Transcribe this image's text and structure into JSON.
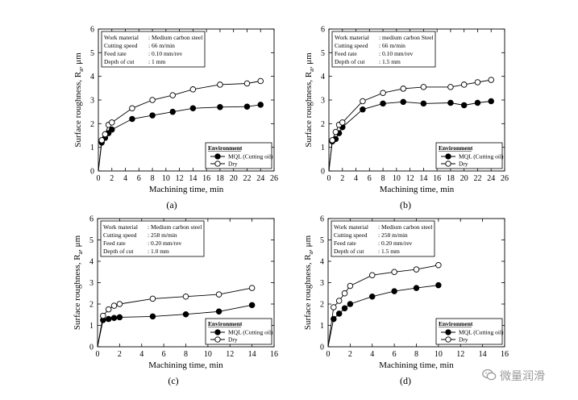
{
  "chart_data": [
    {
      "type": "line",
      "label": "(a)",
      "xlabel": "Machining time, min",
      "ylabel_main": "Surface roughness, R",
      "ylabel_sub": "a",
      "ylabel_unit": ", μm",
      "xlim": [
        0,
        26
      ],
      "ylim": [
        0,
        6
      ],
      "xticks": [
        "0",
        "2",
        "4",
        "6",
        "8",
        "10",
        "12",
        "14",
        "16",
        "18",
        "20",
        "22",
        "24",
        "26"
      ],
      "yticks": [
        "0",
        "1",
        "2",
        "3",
        "4",
        "5",
        "6"
      ],
      "conditions": [
        [
          "Work material",
          ": Medium carbon steel"
        ],
        [
          "Cutting speed",
          ": 66 m/min"
        ],
        [
          "Feed rate",
          ": 0.10 mm/rev"
        ],
        [
          "Depth of cut",
          ": 1 mm"
        ]
      ],
      "legend_title": "Environment",
      "series": [
        {
          "name": "MQL (Cutting oil)",
          "marker": "filled",
          "x": [
            0,
            0.5,
            1,
            1.5,
            2,
            5,
            8,
            11,
            14,
            18,
            22,
            24
          ],
          "y": [
            0,
            1.2,
            1.4,
            1.6,
            1.75,
            2.2,
            2.35,
            2.5,
            2.65,
            2.7,
            2.72,
            2.8
          ]
        },
        {
          "name": "Dry",
          "marker": "open",
          "x": [
            0,
            0.5,
            1,
            1.5,
            2,
            5,
            8,
            11,
            14,
            18,
            22,
            24
          ],
          "y": [
            0,
            1.3,
            1.55,
            1.95,
            2.05,
            2.65,
            3.0,
            3.2,
            3.45,
            3.65,
            3.7,
            3.8
          ]
        }
      ]
    },
    {
      "type": "line",
      "label": "(b)",
      "xlabel": "Machining time, min",
      "ylabel_main": "Surface roughness, R",
      "ylabel_sub": "a",
      "ylabel_unit": ", μm",
      "xlim": [
        0,
        26
      ],
      "ylim": [
        0,
        6
      ],
      "xticks": [
        "0",
        "2",
        "4",
        "6",
        "8",
        "10",
        "12",
        "14",
        "16",
        "18",
        "20",
        "22",
        "24",
        "26"
      ],
      "yticks": [
        "0",
        "1",
        "2",
        "3",
        "4",
        "5",
        "6"
      ],
      "conditions": [
        [
          "Work material",
          ": medium carbon Steel"
        ],
        [
          "Cutting speed",
          ": 66 m/min"
        ],
        [
          "Feed rate",
          ": 0.10 mm/rev"
        ],
        [
          "Depth of cut",
          ": 1.5 mm"
        ]
      ],
      "legend_title": "Environment",
      "series": [
        {
          "name": "MQL (Cutting oil)",
          "marker": "filled",
          "x": [
            0,
            0.5,
            1,
            1.5,
            2,
            5,
            8,
            11,
            14,
            18,
            20,
            22,
            24
          ],
          "y": [
            0,
            1.25,
            1.35,
            1.6,
            1.85,
            2.6,
            2.85,
            2.92,
            2.85,
            2.88,
            2.78,
            2.88,
            2.95
          ]
        },
        {
          "name": "Dry",
          "marker": "open",
          "x": [
            0,
            0.5,
            1,
            1.5,
            2,
            5,
            8,
            11,
            14,
            18,
            20,
            22,
            24
          ],
          "y": [
            0,
            1.3,
            1.65,
            1.95,
            2.05,
            2.95,
            3.3,
            3.48,
            3.55,
            3.55,
            3.65,
            3.75,
            3.85
          ]
        }
      ]
    },
    {
      "type": "line",
      "label": "(c)",
      "xlabel": "Machining time, min",
      "ylabel_main": "Surface roughness, R",
      "ylabel_sub": "a",
      "ylabel_unit": ", μm",
      "xlim": [
        0,
        16
      ],
      "ylim": [
        0,
        6
      ],
      "xticks": [
        "0",
        "2",
        "4",
        "6",
        "8",
        "10",
        "12",
        "14",
        "16"
      ],
      "yticks": [
        "0",
        "1",
        "2",
        "3",
        "4",
        "5",
        "6"
      ],
      "conditions": [
        [
          "Work material",
          ": Medium carbon steel"
        ],
        [
          "Cutting speed",
          ": 258 m/min"
        ],
        [
          "Feed rate",
          ": 0.20 mm/rev"
        ],
        [
          "Depth of cut",
          ": 1.0 mm"
        ]
      ],
      "legend_title": "Environment",
      "series": [
        {
          "name": "MQL (Cutting oil)",
          "marker": "filled",
          "x": [
            0,
            0.5,
            1,
            1.5,
            2,
            5,
            8,
            11,
            14
          ],
          "y": [
            0,
            1.25,
            1.3,
            1.35,
            1.38,
            1.42,
            1.52,
            1.65,
            1.95
          ]
        },
        {
          "name": "Dry",
          "marker": "open",
          "x": [
            0,
            0.5,
            1,
            1.5,
            2,
            5,
            8,
            11,
            14
          ],
          "y": [
            0,
            1.45,
            1.75,
            1.92,
            2.0,
            2.25,
            2.35,
            2.45,
            2.75
          ]
        }
      ]
    },
    {
      "type": "line",
      "label": "(d)",
      "xlabel": "Machining time, min",
      "ylabel_main": "Surface roughness, R",
      "ylabel_sub": "a",
      "ylabel_unit": ", μm",
      "xlim": [
        0,
        16
      ],
      "ylim": [
        0,
        6
      ],
      "xticks": [
        "0",
        "2",
        "4",
        "6",
        "8",
        "10",
        "12",
        "14",
        "16"
      ],
      "yticks": [
        "0",
        "1",
        "2",
        "3",
        "4",
        "5",
        "6"
      ],
      "conditions": [
        [
          "Work material",
          ": Medium carbon steel"
        ],
        [
          "Cutting speed",
          ": 258 m/min"
        ],
        [
          "Feed rate",
          ": 0.20 mm/rev"
        ],
        [
          "Depth of cut",
          ": 1.5 mm"
        ]
      ],
      "legend_title": "Environment",
      "series": [
        {
          "name": "MQL (Cutting oil)",
          "marker": "filled",
          "x": [
            0,
            0.5,
            1,
            1.5,
            2,
            4,
            6,
            8,
            10
          ],
          "y": [
            0,
            1.3,
            1.55,
            1.8,
            2.0,
            2.35,
            2.6,
            2.75,
            2.88
          ]
        },
        {
          "name": "Dry",
          "marker": "open",
          "x": [
            0,
            0.5,
            1,
            1.5,
            2,
            4,
            6,
            8,
            10
          ],
          "y": [
            0,
            1.85,
            2.15,
            2.5,
            2.85,
            3.35,
            3.5,
            3.62,
            3.82
          ]
        }
      ]
    }
  ],
  "watermark": {
    "text": "微量润滑",
    "icon": "wechat-icon"
  }
}
